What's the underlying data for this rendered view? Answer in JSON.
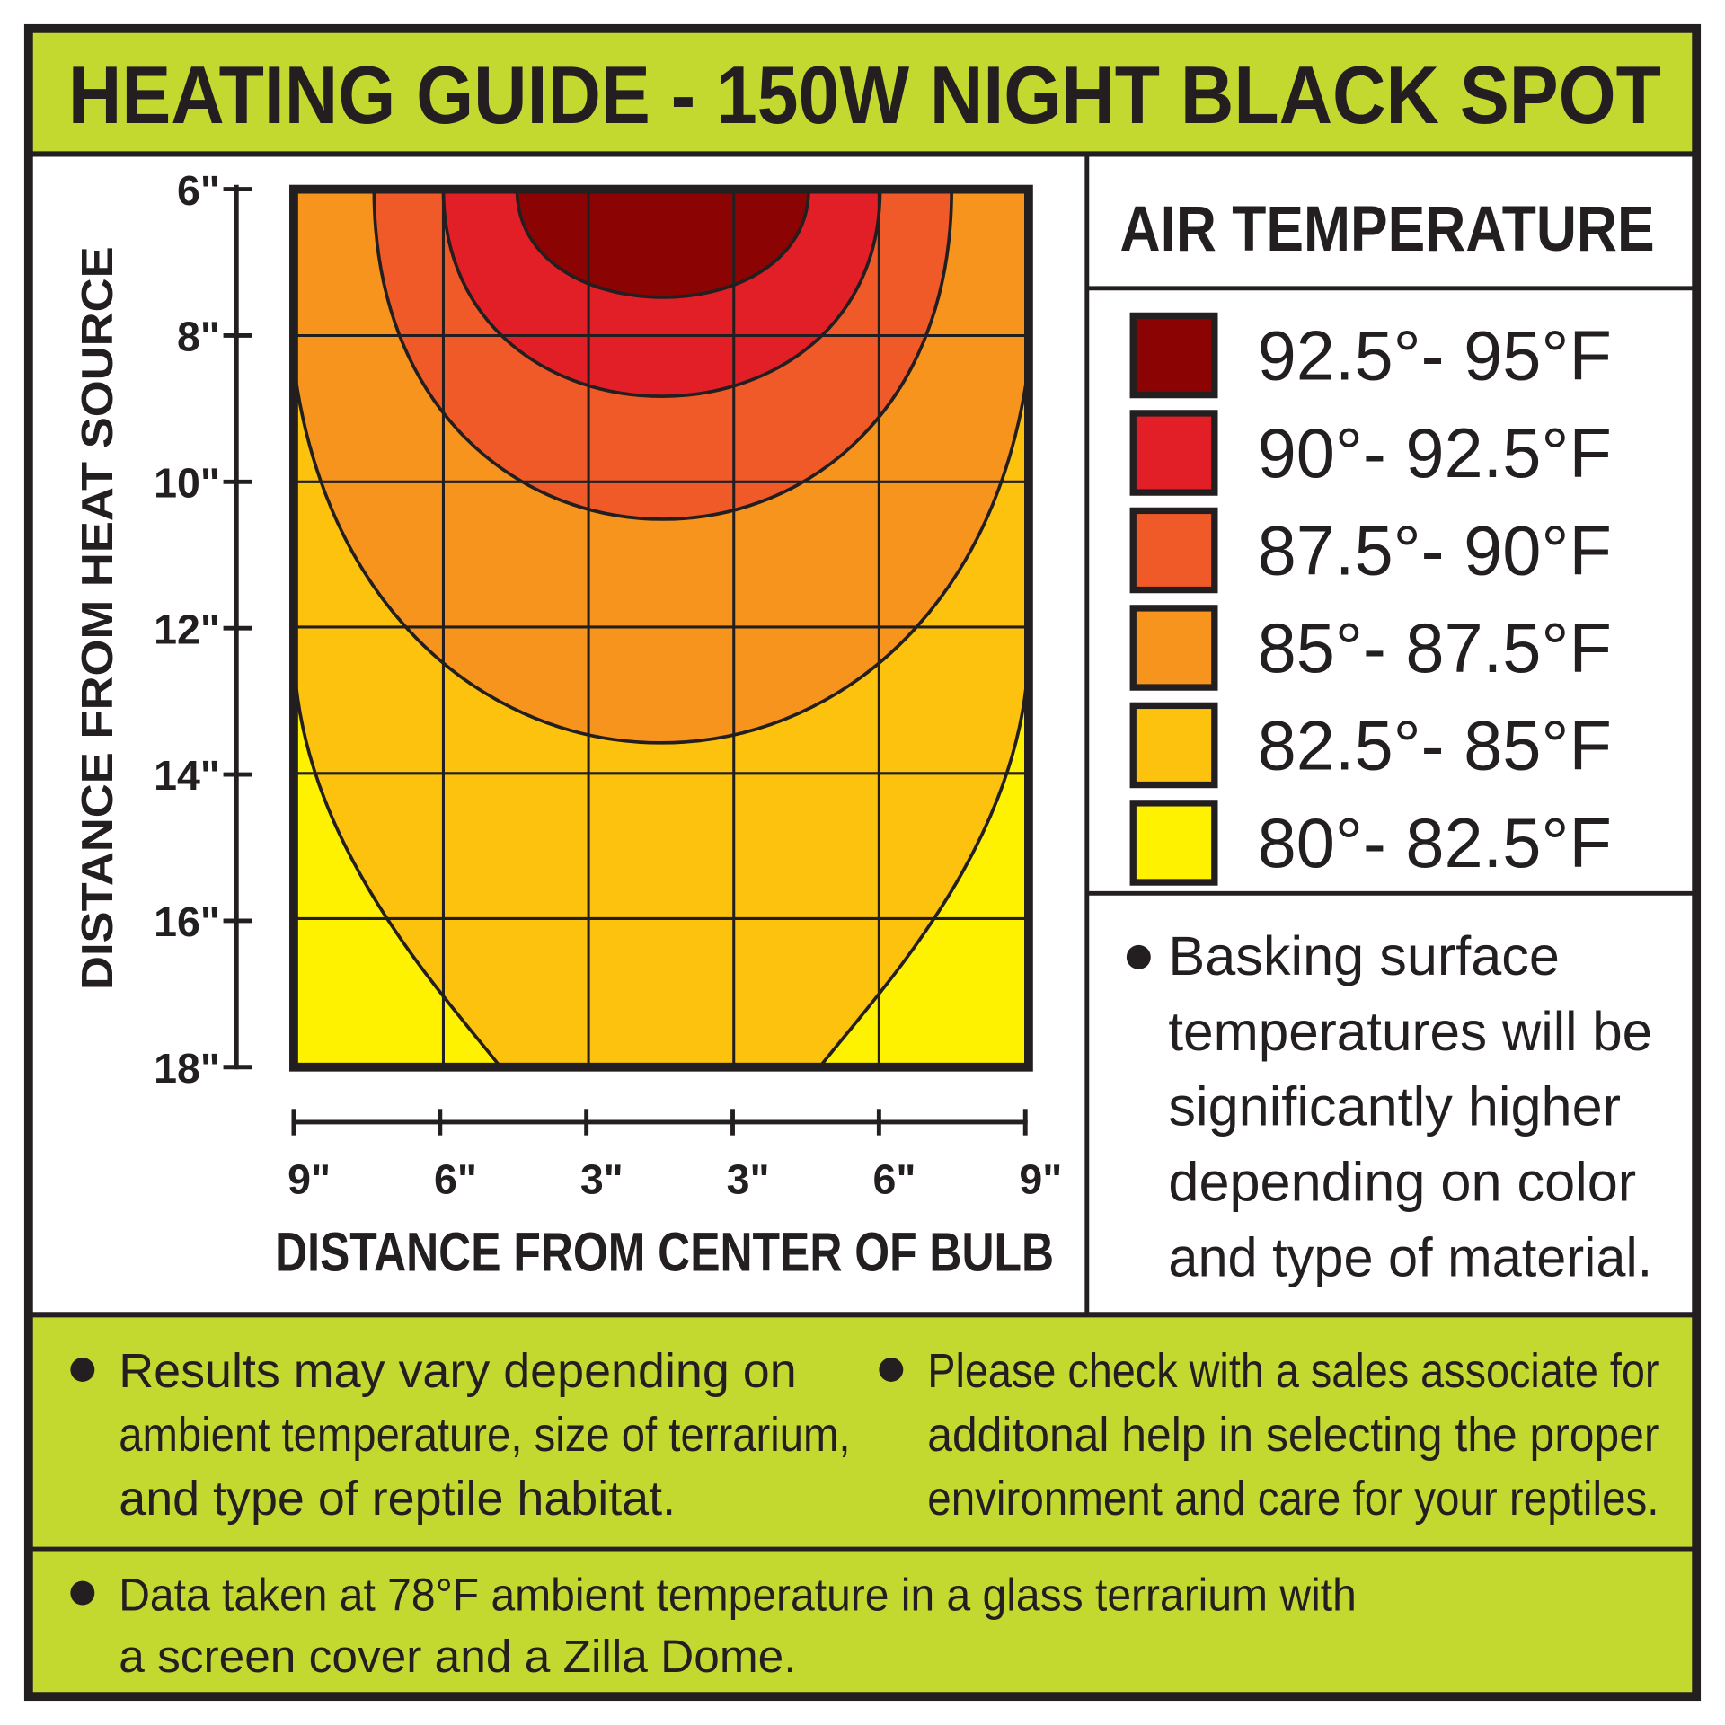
{
  "title": "HEATING GUIDE - 150W NIGHT BLACK SPOT",
  "y_axis": {
    "title": "DISTANCE FROM HEAT SOURCE",
    "ticks": [
      "6\"",
      "8\"",
      "10\"",
      "12\"",
      "14\"",
      "16\"",
      "18\""
    ]
  },
  "x_axis": {
    "title": "DISTANCE FROM CENTER OF BULB",
    "ticks": [
      "9\"",
      "6\"",
      "3\"",
      "3\"",
      "6\"",
      "9\""
    ]
  },
  "legend": {
    "title": "AIR TEMPERATURE",
    "items": [
      {
        "label": "92.5°- 95°F",
        "color": "#8b0303"
      },
      {
        "label": "90°- 92.5°F",
        "color": "#e21f26"
      },
      {
        "label": "87.5°- 90°F",
        "color": "#f05a28"
      },
      {
        "label": "85°- 87.5°F",
        "color": "#f7941d"
      },
      {
        "label": "82.5°- 85°F",
        "color": "#fcc20e"
      },
      {
        "label": "80°- 82.5°F",
        "color": "#fff200"
      }
    ]
  },
  "notes": {
    "basking": [
      "Basking surface",
      "temperatures will be",
      "significantly higher",
      "depending on color",
      "and type of material."
    ],
    "results": [
      "Results may vary depending on",
      "ambient temperature, size of terrarium,",
      "and type of reptile habitat."
    ],
    "sales": [
      "Please check with a sales associate for",
      "additonal help in selecting the proper",
      "environment and care for your reptiles."
    ],
    "data": [
      "Data taken at 78°F ambient temperature in a glass terrarium with",
      "a screen cover and a Zilla Dome."
    ]
  }
}
